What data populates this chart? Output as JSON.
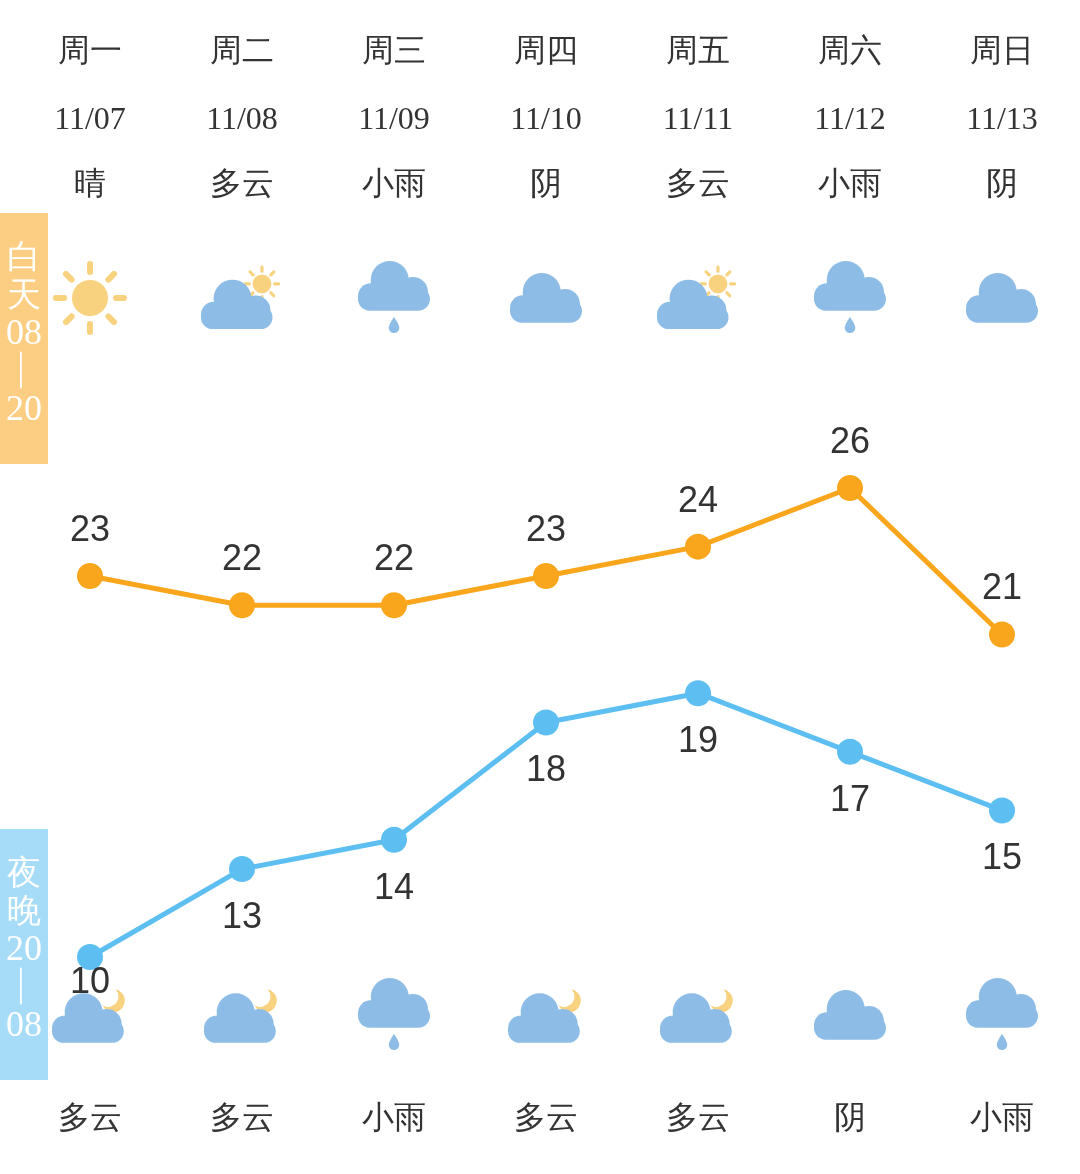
{
  "chart_data": {
    "type": "line",
    "categories": [
      "周一",
      "周二",
      "周三",
      "周四",
      "周五",
      "周六",
      "周日"
    ],
    "series": [
      {
        "color": "#f9a61d",
        "values": [
          23,
          22,
          22,
          23,
          24,
          26,
          21
        ]
      },
      {
        "color": "#5dbff1",
        "values": [
          10,
          13,
          14,
          18,
          19,
          17,
          15
        ]
      }
    ],
    "data_labels": true,
    "marker": "circle",
    "tick_labels": "x",
    "annotations": [
      "11/07",
      "11/08",
      "11/09",
      "11/10",
      "11/11",
      "11/12",
      "11/13",
      "晴",
      "多云",
      "小雨",
      "阴",
      "多云",
      "小雨",
      "阴",
      "多云",
      "多云",
      "小雨",
      "多云",
      "多云",
      "阴",
      "小雨",
      "白天08—20",
      "夜晚20—08"
    ]
  }
}
